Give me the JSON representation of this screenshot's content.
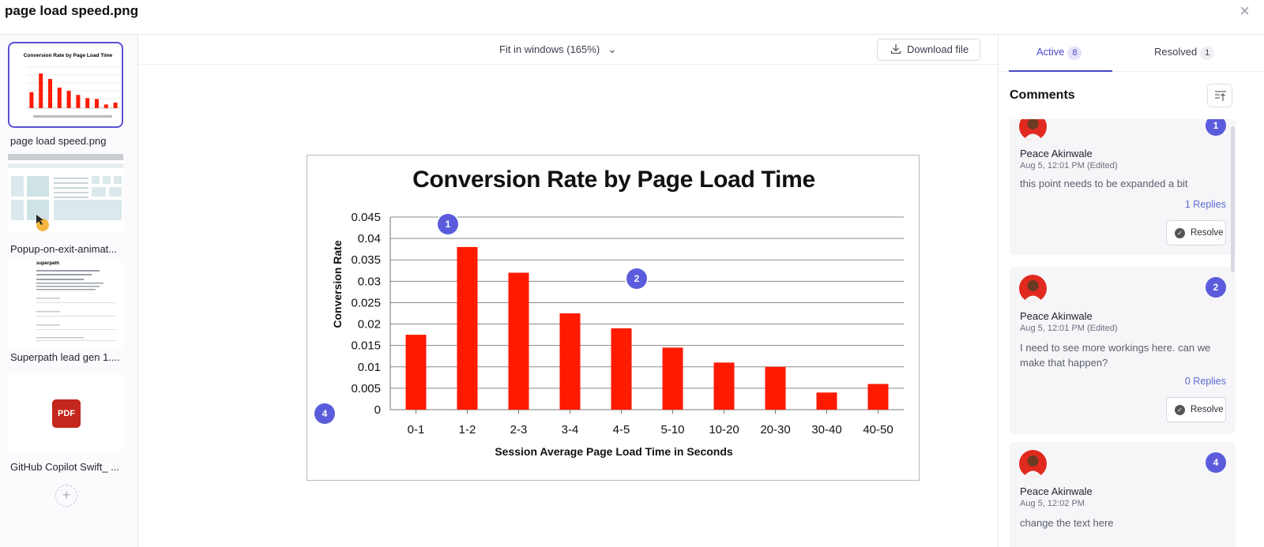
{
  "header": {
    "title": "page load speed.png",
    "close_icon": "×"
  },
  "sidebar": {
    "items": [
      {
        "label": "page load speed.png",
        "thumb_title": "Conversion Rate by Page Load Time"
      },
      {
        "label": "Popup-on-exit-animat..."
      },
      {
        "label": "Superpath lead gen 1....",
        "thumb_title": "superpath"
      },
      {
        "label": "GitHub Copilot Swift_ ...",
        "badge": "PDF"
      }
    ],
    "add_icon": "+"
  },
  "toolbar": {
    "zoom_label": "Fit in windows (165%)",
    "download_label": "Download file"
  },
  "chart_data": {
    "type": "bar",
    "title": "Conversion Rate by Page Load Time",
    "xlabel": "Session Average Page Load Time in Seconds",
    "ylabel": "Conversion Rate",
    "categories": [
      "0-1",
      "1-2",
      "2-3",
      "3-4",
      "4-5",
      "5-10",
      "10-20",
      "20-30",
      "30-40",
      "40-50"
    ],
    "values": [
      0.0175,
      0.038,
      0.032,
      0.0225,
      0.019,
      0.0145,
      0.011,
      0.01,
      0.004,
      0.006
    ],
    "ylim": [
      0,
      0.045
    ],
    "yticks": [
      "0",
      "0.005",
      "0.01",
      "0.015",
      "0.02",
      "0.025",
      "0.03",
      "0.035",
      "0.04",
      "0.045"
    ],
    "grid": true,
    "bar_color": "#ff1a00"
  },
  "pins": [
    {
      "number": "1"
    },
    {
      "number": "2"
    },
    {
      "number": "4"
    }
  ],
  "panel": {
    "tabs": [
      {
        "label": "Active",
        "count": "8"
      },
      {
        "label": "Resolved",
        "count": "1"
      }
    ],
    "heading": "Comments",
    "comments": [
      {
        "author": "Peace Akinwale",
        "time": "Aug 5, 12:01 PM (Edited)",
        "text": "this point needs to be expanded a bit",
        "replies": "1 Replies",
        "resolve": "Resolve",
        "pin": "1"
      },
      {
        "author": "Peace Akinwale",
        "time": "Aug 5, 12:01 PM (Edited)",
        "text": "I need to see more workings here. can we make that happen?",
        "replies": "0 Replies",
        "resolve": "Resolve",
        "pin": "2"
      },
      {
        "author": "Peace Akinwale",
        "time": "Aug 5, 12:02 PM",
        "text": "change the text here",
        "pin": "4"
      }
    ]
  },
  "colors": {
    "accent": "#5b5cdb",
    "tab_active": "#4b48c8"
  }
}
